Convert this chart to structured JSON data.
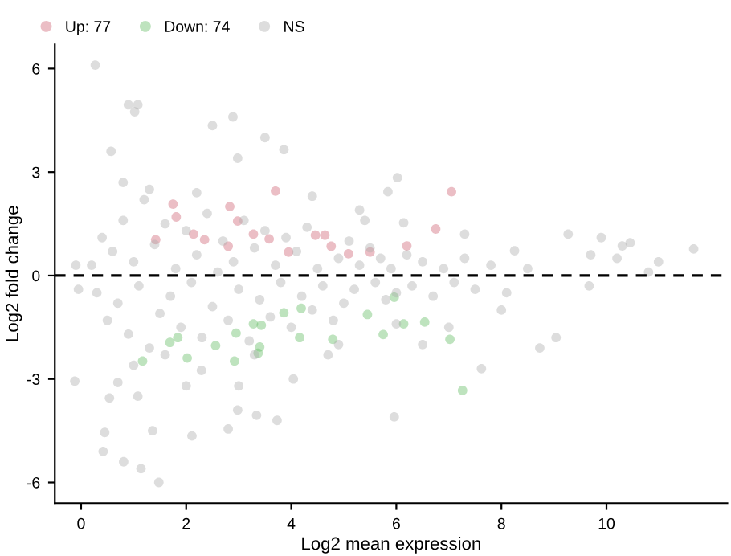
{
  "chart_data": {
    "type": "scatter",
    "xlabel": "Log2 mean expression",
    "ylabel": "Log2 fold change",
    "xlim": [
      -0.5,
      12.3
    ],
    "ylim": [
      -6.6,
      6.7
    ],
    "xticks": [
      0,
      2,
      4,
      6,
      8,
      10
    ],
    "yticks": [
      -6,
      -3,
      0,
      3,
      6
    ],
    "grid": false,
    "legend": "top left",
    "marker": "circle",
    "ref_lines": [
      {
        "axis": "y",
        "value": 0,
        "color": "#000000",
        "line_style": "dashed"
      }
    ],
    "series": [
      {
        "name": "Up: 77",
        "color": "#cd5c6f",
        "x": [
          1.75,
          1.81,
          2.14,
          2.35,
          2.83,
          2.98,
          3.28,
          3.58,
          3.7,
          1.42,
          4.46,
          4.64,
          4.76,
          5.09,
          2.8,
          3.95,
          5.5,
          6.2,
          6.75,
          7.05
        ],
        "values": [
          2.07,
          1.7,
          1.2,
          1.04,
          2.0,
          1.58,
          1.2,
          1.06,
          2.45,
          1.04,
          1.17,
          1.17,
          0.85,
          0.63,
          0.85,
          0.68,
          0.68,
          0.86,
          1.35,
          2.43
        ]
      },
      {
        "name": "Down: 74",
        "color": "#5cb85c",
        "x": [
          1.69,
          1.17,
          2.02,
          2.56,
          2.95,
          2.92,
          3.4,
          3.37,
          3.43,
          4.16,
          4.19,
          4.79,
          3.86,
          3.28,
          1.84,
          5.96,
          5.45,
          6.14,
          5.75,
          6.54,
          7.02,
          7.26
        ],
        "values": [
          -1.94,
          -2.48,
          -2.39,
          -2.03,
          -1.67,
          -2.48,
          -2.07,
          -2.25,
          -1.44,
          -1.8,
          -0.95,
          -1.85,
          -1.08,
          -1.4,
          -1.8,
          -0.63,
          -1.13,
          -1.4,
          -1.71,
          -1.35,
          -1.85,
          -3.33
        ]
      },
      {
        "name": "NS",
        "color": "#a9a9a9",
        "x": [
          0.2,
          0.3,
          0.4,
          0.5,
          0.6,
          0.7,
          0.8,
          0.9,
          1.0,
          1.1,
          1.2,
          1.3,
          1.4,
          1.5,
          1.6,
          1.7,
          1.8,
          1.9,
          2.0,
          2.1,
          2.2,
          2.3,
          2.4,
          2.5,
          2.6,
          2.7,
          2.8,
          2.9,
          3.0,
          3.1,
          3.2,
          3.3,
          3.4,
          3.5,
          3.6,
          3.7,
          3.8,
          3.9,
          4.0,
          4.1,
          4.2,
          4.3,
          4.4,
          4.5,
          4.6,
          4.7,
          4.8,
          4.9,
          5.0,
          5.1,
          5.2,
          5.3,
          5.4,
          5.5,
          5.6,
          5.7,
          5.8,
          5.9,
          6.0,
          6.2,
          6.3,
          6.5,
          6.7,
          6.9,
          7.1,
          7.3,
          7.5,
          7.8,
          8.1,
          8.5,
          9.7,
          10.2,
          1.0,
          0.7,
          1.3,
          0.8,
          1.6,
          2.2,
          3.3,
          4.4,
          5.3,
          4.9,
          2.0,
          3.0,
          6.0,
          6.5,
          7.0,
          7.3,
          8.0,
          0.45,
          0.42,
          0.81,
          1.14,
          1.48,
          1.36,
          2.11,
          2.8,
          2.98,
          3.34,
          3.73,
          4.04,
          -0.12,
          0.54,
          1.08,
          2.29,
          5.96,
          7.62,
          8.73,
          9.04,
          9.67,
          10.8,
          10.99,
          11.66,
          10.3,
          9.9,
          9.27,
          10.45,
          8.25,
          6.14,
          5.84,
          6.02,
          0.27,
          0.9,
          1.08,
          1.02,
          2.5,
          2.89,
          3.5,
          3.86,
          2.98,
          0.57,
          -0.1,
          -0.05
        ],
        "values": [
          0.3,
          -0.5,
          1.1,
          -1.3,
          0.7,
          -0.8,
          1.6,
          -1.7,
          0.4,
          -0.3,
          2.2,
          -2.1,
          0.9,
          -1.1,
          1.5,
          -0.6,
          0.2,
          -1.5,
          1.3,
          -0.2,
          0.6,
          -1.8,
          1.8,
          -0.9,
          0.1,
          1.0,
          -1.3,
          0.4,
          -0.4,
          1.6,
          -1.9,
          0.8,
          -0.7,
          1.3,
          -1.2,
          0.3,
          -0.2,
          1.1,
          -1.5,
          0.7,
          -0.6,
          1.4,
          -1.0,
          0.2,
          -0.3,
          -2.3,
          -1.3,
          0.5,
          -0.8,
          1.0,
          -0.4,
          0.3,
          1.6,
          0.8,
          -0.2,
          0.5,
          -0.7,
          0.2,
          -0.5,
          0.6,
          -0.3,
          0.4,
          -0.6,
          0.2,
          -0.2,
          0.5,
          -0.4,
          0.3,
          -0.5,
          0.2,
          0.6,
          0.5,
          -2.6,
          -3.1,
          2.5,
          2.7,
          -2.3,
          2.4,
          -2.3,
          2.3,
          1.9,
          -2.0,
          -3.2,
          -3.2,
          -1.4,
          -2.0,
          -1.5,
          1.2,
          -1.0,
          -4.55,
          -5.1,
          -5.4,
          -5.6,
          -6.0,
          -4.5,
          -4.65,
          -4.45,
          -3.9,
          -4.05,
          -4.2,
          -3.0,
          -3.06,
          -3.55,
          -3.5,
          -2.75,
          -4.1,
          -2.7,
          -2.1,
          -1.8,
          -0.3,
          0.1,
          0.4,
          0.77,
          0.86,
          1.1,
          1.2,
          0.95,
          0.72,
          1.53,
          2.43,
          2.84,
          6.1,
          4.95,
          4.95,
          4.75,
          4.35,
          4.6,
          4.0,
          3.65,
          3.4,
          3.6,
          0.3,
          -0.4
        ]
      }
    ]
  }
}
